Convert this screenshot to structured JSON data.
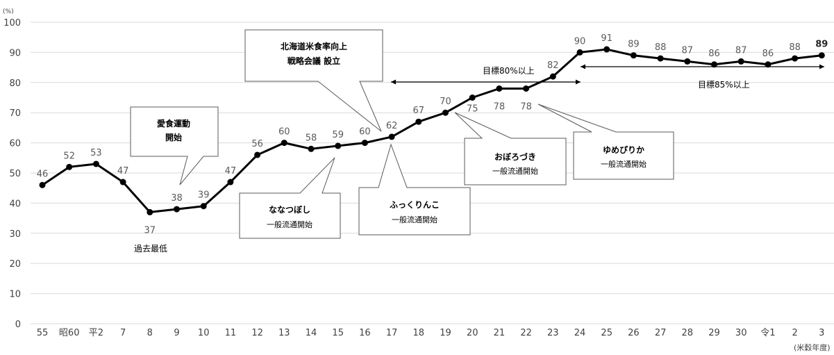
{
  "chart_data": {
    "type": "line",
    "y_unit": "(%)",
    "x_unit": "(米穀年度)",
    "ylim": [
      0,
      100
    ],
    "yticks": [
      0,
      10,
      20,
      30,
      40,
      50,
      60,
      70,
      80,
      90,
      100
    ],
    "grid": true,
    "categories": [
      "55",
      "昭60",
      "平2",
      "7",
      "8",
      "9",
      "10",
      "11",
      "12",
      "13",
      "14",
      "15",
      "16",
      "17",
      "18",
      "19",
      "20",
      "21",
      "22",
      "23",
      "24",
      "25",
      "26",
      "27",
      "28",
      "29",
      "30",
      "令1",
      "2",
      "3"
    ],
    "series": [
      {
        "values": [
          46,
          52,
          53,
          47,
          37,
          38,
          39,
          47,
          56,
          60,
          58,
          59,
          60,
          62,
          67,
          70,
          75,
          78,
          78,
          82,
          90,
          91,
          89,
          88,
          87,
          86,
          87,
          86,
          88,
          89
        ]
      }
    ],
    "data_labels": [
      "46",
      "52",
      "53",
      "47",
      "37",
      "38",
      "39",
      "47",
      "56",
      "60",
      "58",
      "59",
      "60",
      "62",
      "67",
      "70",
      "75",
      "78",
      "78",
      "82",
      "90",
      "91",
      "89",
      "88",
      "87",
      "86",
      "87",
      "86",
      "88",
      "89"
    ],
    "annotations": {
      "lowest": "過去最低",
      "aishoku": [
        "愛食運動",
        "開始"
      ],
      "senryaku": [
        "北海道米食率向上",
        "戦略会議 設立"
      ],
      "nanatsuboshi": [
        "ななつぼし",
        "一般流通開始"
      ],
      "fukkurinko": [
        "ふっくりんこ",
        "一般流通開始"
      ],
      "oborozuki": [
        "おぼろづき",
        "一般流通開始"
      ],
      "yumepirika": [
        "ゆめぴりか",
        "一般流通開始"
      ],
      "target80": "目標80%以上",
      "target85": "目標85%以上"
    }
  }
}
